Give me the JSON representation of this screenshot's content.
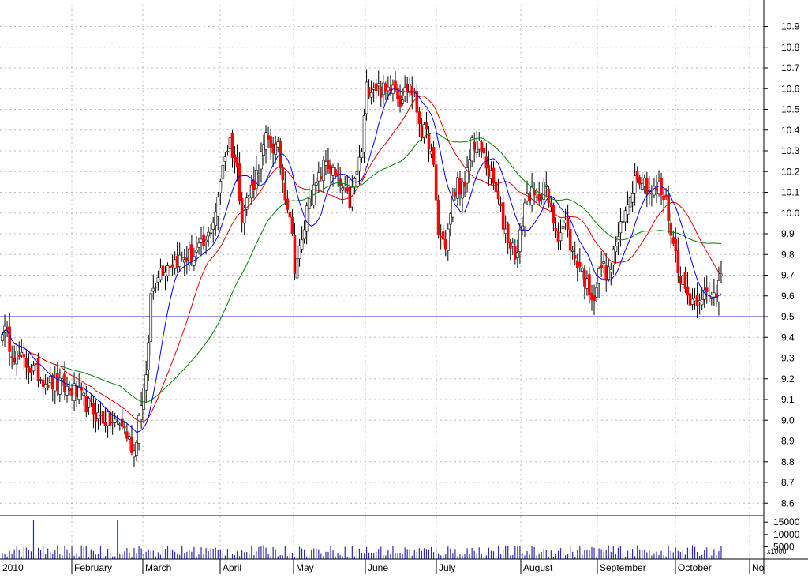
{
  "chart_data": {
    "type": "candlestick",
    "title": "",
    "price_axis": {
      "ticks": [
        "8.6",
        "8.7",
        "8.8",
        "8.9",
        "9.0",
        "9.1",
        "9.2",
        "9.3",
        "9.4",
        "9.5",
        "9.6",
        "9.7",
        "9.8",
        "9.9",
        "10.0",
        "10.1",
        "10.2",
        "10.3",
        "10.4",
        "10.5",
        "10.6",
        "10.7",
        "10.8",
        "10.9"
      ],
      "range": [
        8.55,
        11.0
      ],
      "grid": true,
      "position": "right"
    },
    "volume_axis": {
      "ticks": [
        "15000",
        "10000",
        "5000"
      ],
      "unit_label": "x1000",
      "range": [
        0,
        17000
      ]
    },
    "month_labels": [
      "2010",
      "February",
      "March",
      "April",
      "May",
      "June",
      "July",
      "August",
      "September",
      "October",
      "No"
    ],
    "reference_line": {
      "value": 9.5,
      "color": "#2b2bb0"
    },
    "colors": {
      "up": "#ffffff",
      "down": "#ff0000",
      "candle_outline": "#000000",
      "volume": "#2b2bb0",
      "ma_fast": "#0000ff",
      "ma_mid": "#e00000",
      "ma_slow": "#008000",
      "grid": "#b8b8b8"
    },
    "anchors": [
      [
        0,
        9.45
      ],
      [
        5,
        9.32
      ],
      [
        10,
        9.27
      ],
      [
        15,
        9.22
      ],
      [
        20,
        9.18
      ],
      [
        25,
        9.16
      ],
      [
        30,
        9.14
      ],
      [
        35,
        9.08
      ],
      [
        40,
        9.02
      ],
      [
        45,
        8.99
      ],
      [
        50,
        8.98
      ],
      [
        55,
        8.85
      ],
      [
        58,
        9.1
      ],
      [
        60,
        9.18
      ],
      [
        62,
        9.6
      ],
      [
        65,
        9.72
      ],
      [
        70,
        9.76
      ],
      [
        75,
        9.78
      ],
      [
        80,
        9.8
      ],
      [
        85,
        9.85
      ],
      [
        90,
        10.05
      ],
      [
        92,
        10.25
      ],
      [
        95,
        10.35
      ],
      [
        98,
        10.2
      ],
      [
        100,
        10.0
      ],
      [
        105,
        10.15
      ],
      [
        110,
        10.35
      ],
      [
        115,
        10.3
      ],
      [
        118,
        10.1
      ],
      [
        120,
        10.0
      ],
      [
        122,
        9.75
      ],
      [
        125,
        9.85
      ],
      [
        128,
        10.1
      ],
      [
        130,
        10.1
      ],
      [
        135,
        10.25
      ],
      [
        140,
        10.15
      ],
      [
        145,
        10.05
      ],
      [
        150,
        10.3
      ],
      [
        152,
        10.6
      ],
      [
        155,
        10.62
      ],
      [
        160,
        10.58
      ],
      [
        163,
        10.65
      ],
      [
        166,
        10.55
      ],
      [
        170,
        10.62
      ],
      [
        172,
        10.55
      ],
      [
        175,
        10.4
      ],
      [
        178,
        10.35
      ],
      [
        180,
        10.2
      ],
      [
        182,
        9.9
      ],
      [
        185,
        9.85
      ],
      [
        188,
        10.05
      ],
      [
        190,
        10.15
      ],
      [
        193,
        10.1
      ],
      [
        196,
        10.35
      ],
      [
        200,
        10.3
      ],
      [
        203,
        10.2
      ],
      [
        206,
        10.1
      ],
      [
        209,
        9.95
      ],
      [
        212,
        9.85
      ],
      [
        215,
        9.8
      ],
      [
        218,
        10.05
      ],
      [
        220,
        10.1
      ],
      [
        223,
        10.05
      ],
      [
        226,
        10.15
      ],
      [
        229,
        10.0
      ],
      [
        232,
        9.9
      ],
      [
        235,
        9.95
      ],
      [
        238,
        9.8
      ],
      [
        241,
        9.75
      ],
      [
        244,
        9.65
      ],
      [
        247,
        9.6
      ],
      [
        250,
        9.75
      ],
      [
        253,
        9.7
      ],
      [
        256,
        9.85
      ],
      [
        259,
        9.95
      ],
      [
        262,
        10.1
      ],
      [
        265,
        10.2
      ],
      [
        268,
        10.15
      ],
      [
        271,
        10.1
      ],
      [
        274,
        10.12
      ],
      [
        277,
        10.05
      ],
      [
        280,
        9.85
      ],
      [
        283,
        9.7
      ],
      [
        286,
        9.6
      ],
      [
        289,
        9.58
      ],
      [
        292,
        9.62
      ],
      [
        295,
        9.58
      ],
      [
        298,
        9.62
      ],
      [
        300,
        9.74
      ]
    ],
    "volume_anchors": [
      [
        0,
        3000
      ],
      [
        13,
        15800
      ],
      [
        30,
        3500
      ],
      [
        48,
        16000
      ],
      [
        60,
        3000
      ],
      [
        120,
        3000
      ],
      [
        180,
        3500
      ],
      [
        240,
        3500
      ],
      [
        300,
        3000
      ]
    ]
  }
}
